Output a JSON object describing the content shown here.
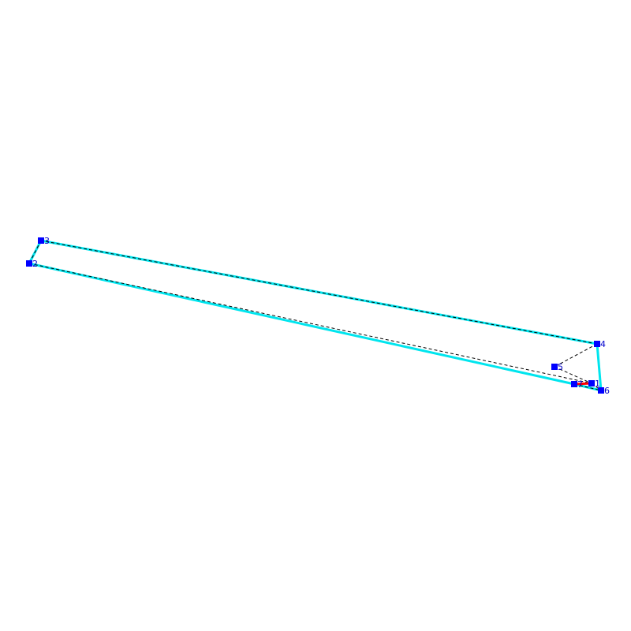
{
  "colors": {
    "outline": "#00e5ee",
    "dashed": "#000000",
    "vertex": "#0000ff",
    "label": "#0000cc",
    "highlight": "#ff0000"
  },
  "vertices": [
    {
      "label": "1"
    },
    {
      "label": "2"
    },
    {
      "label": "3"
    },
    {
      "label": "4"
    },
    {
      "label": "5"
    },
    {
      "label": "6"
    },
    {
      "label": "7"
    }
  ]
}
